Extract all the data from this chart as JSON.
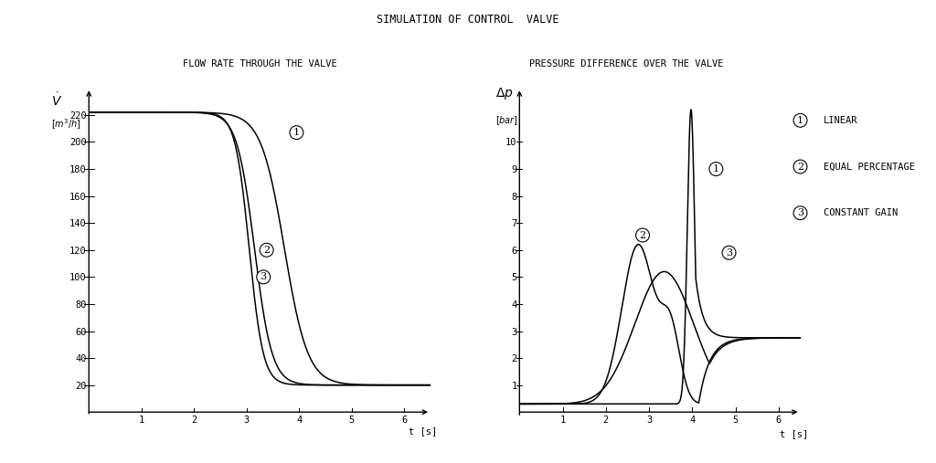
{
  "title": "SIMULATION OF CONTROL  VALVE",
  "left_subtitle": "FLOW RATE THROUGH THE VALVE",
  "right_subtitle": "PRESSURE DIFFERENCE OVER THE VALVE",
  "xlabel": "t [s]",
  "left_yticks": [
    20,
    40,
    60,
    80,
    100,
    120,
    140,
    160,
    180,
    200,
    220
  ],
  "left_ylim": [
    0,
    240
  ],
  "left_xlim": [
    0,
    6.5
  ],
  "right_yticks": [
    1,
    2,
    3,
    4,
    5,
    6,
    7,
    8,
    9,
    10
  ],
  "right_ylim": [
    0,
    12
  ],
  "right_xlim": [
    0,
    6.5
  ],
  "xticks": [
    1,
    2,
    3,
    4,
    5,
    6
  ],
  "legend_labels": [
    "LINEAR",
    "EQUAL PERCENTAGE",
    "CONSTANT GAIN"
  ],
  "background_color": "#ffffff",
  "line_color": "#000000",
  "title_fontsize": 8.5,
  "subtitle_fontsize": 7.5,
  "tick_fontsize": 7.5,
  "legend_fontsize": 7.5
}
